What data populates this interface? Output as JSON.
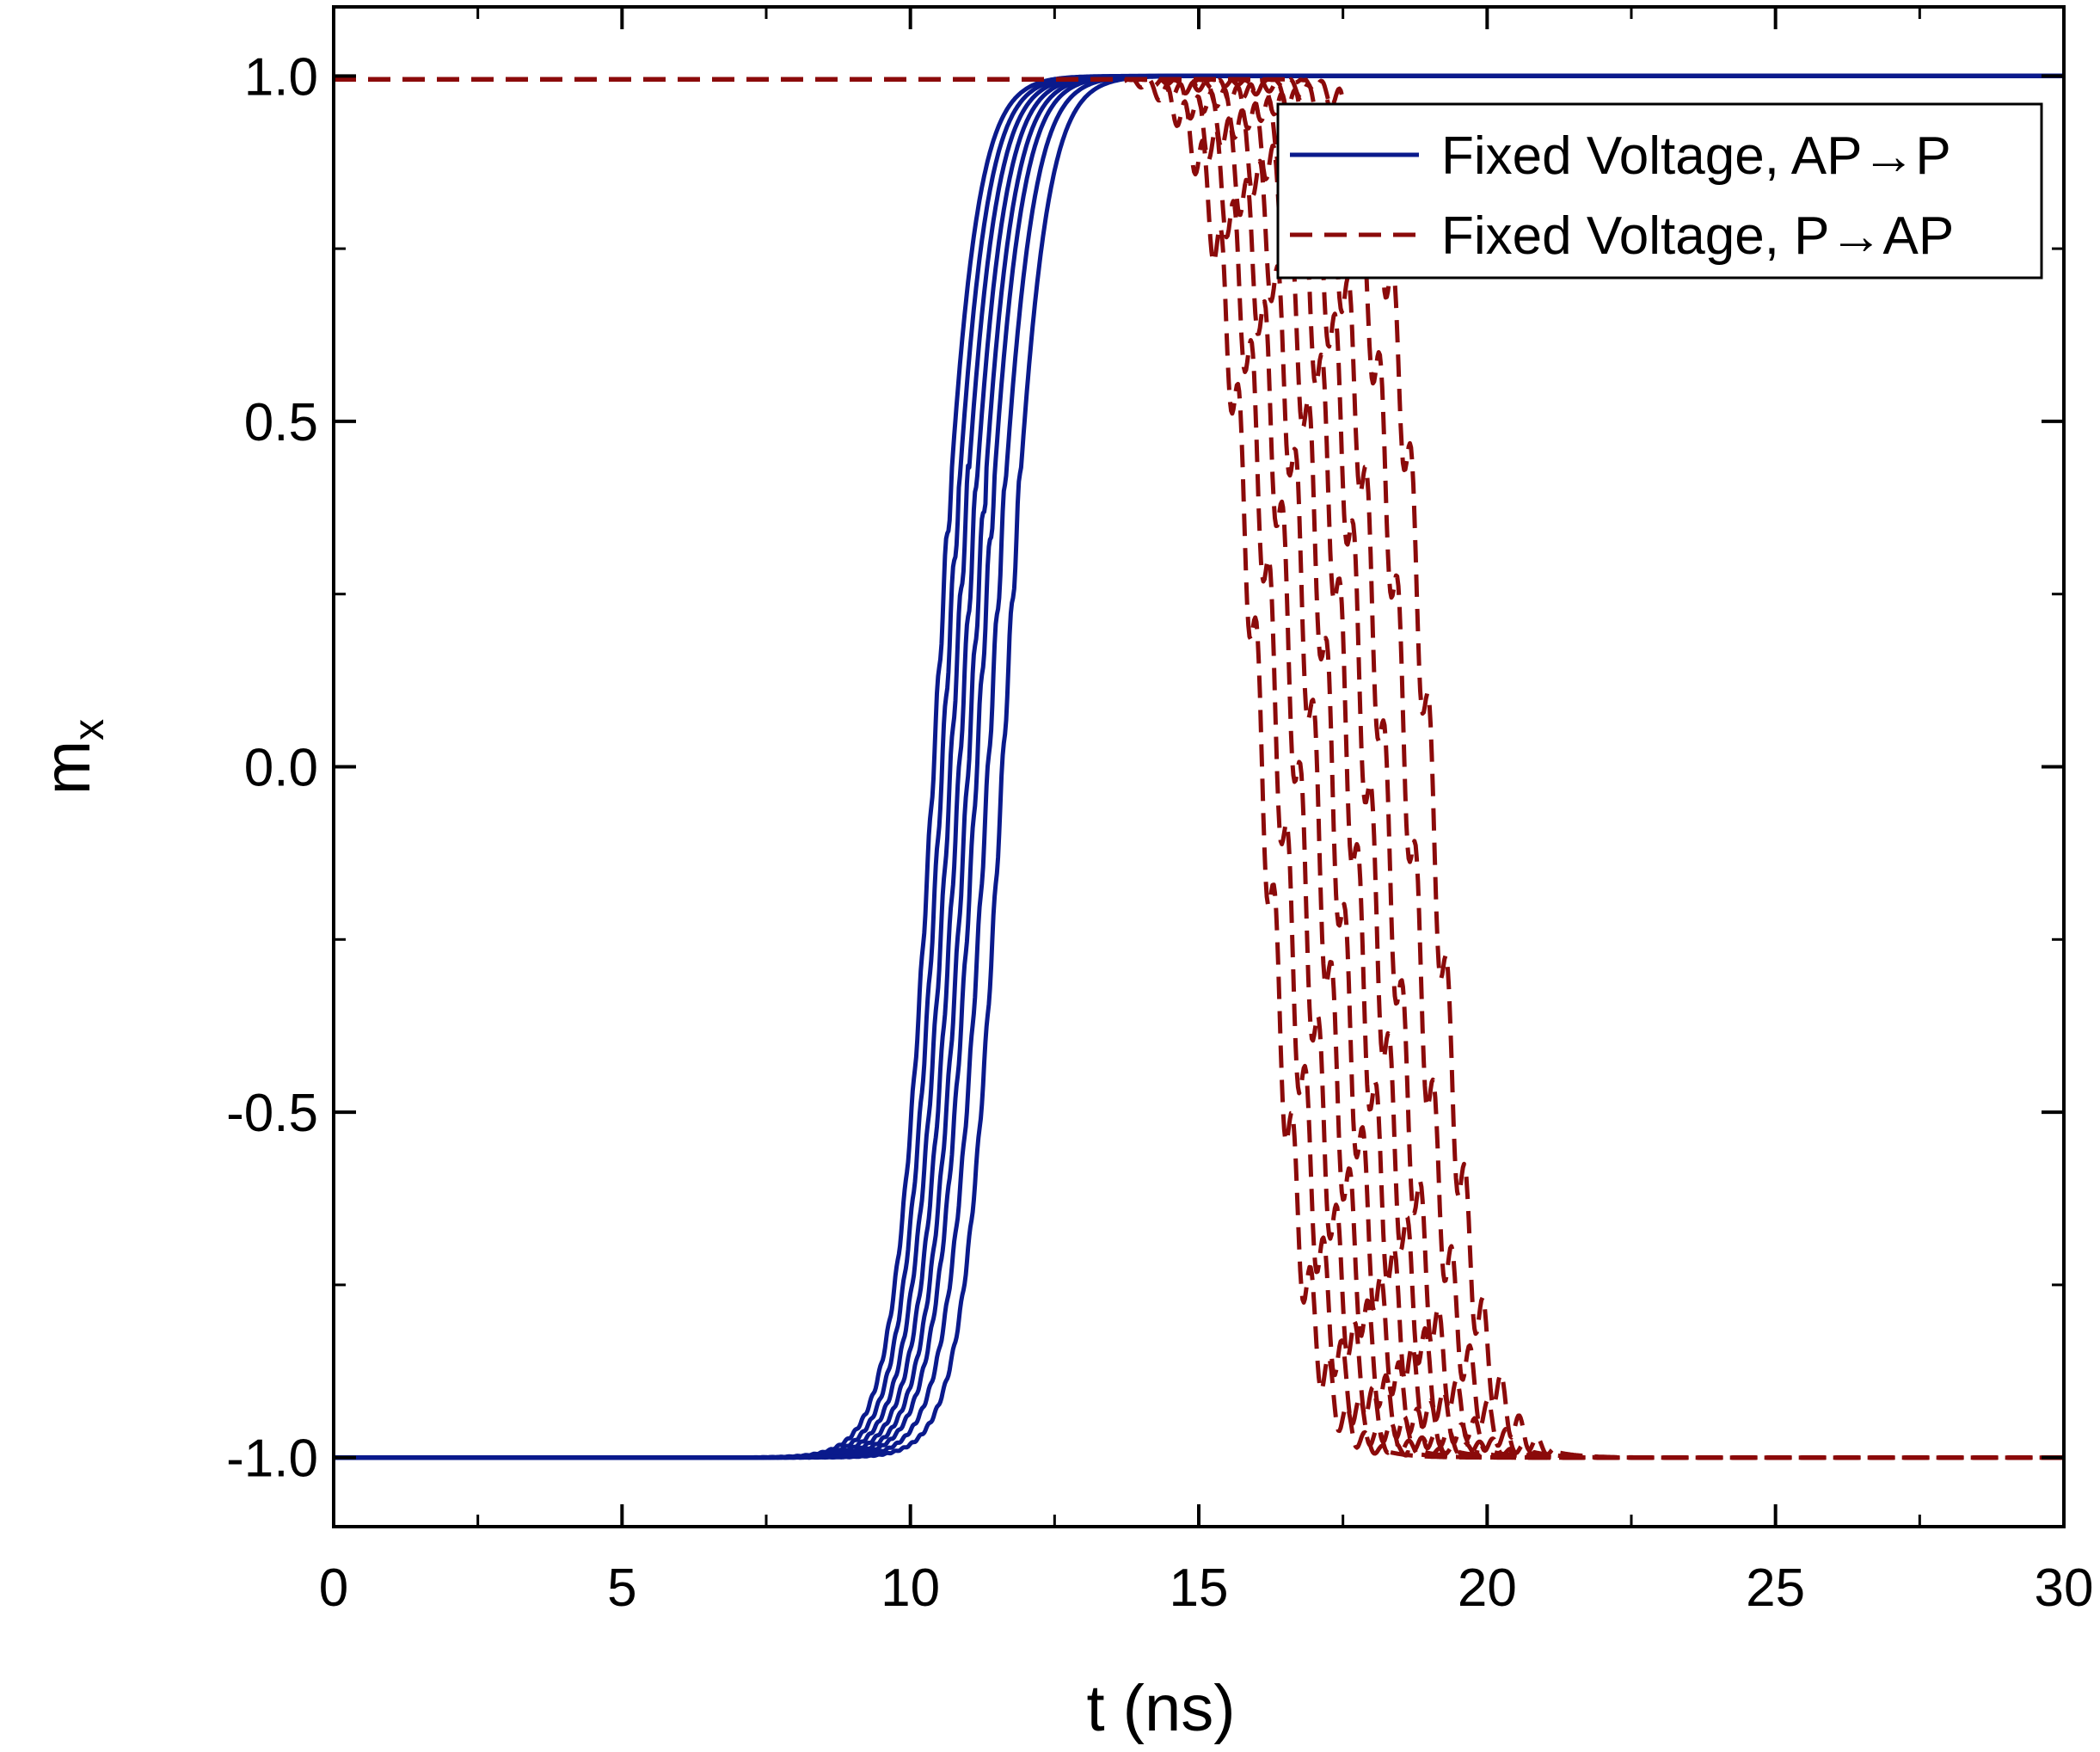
{
  "chart_data": {
    "type": "line",
    "title": "",
    "xlabel": "t (ns)",
    "ylabel_main": "m",
    "ylabel_sub": "x",
    "xlim": [
      0,
      30
    ],
    "ylim": [
      -1.1,
      1.1
    ],
    "x_ticks": [
      0,
      5,
      10,
      15,
      20,
      25,
      30
    ],
    "x_tick_labels": [
      "0",
      "5",
      "10",
      "15",
      "20",
      "25",
      "30"
    ],
    "y_ticks": [
      -1.0,
      -0.5,
      0.0,
      0.5,
      1.0
    ],
    "y_tick_labels": [
      "-1.0",
      "-0.5",
      "0.0",
      "0.5",
      "1.0"
    ],
    "x_minor_step": 2.5,
    "y_minor_step": 0.25,
    "grid": false,
    "legend_position": "top-right",
    "series": [
      {
        "name": "Fixed Voltage, AP→P",
        "color": "#0a1a8c",
        "style": "solid",
        "switch_times": [
          10.4,
          10.55,
          10.7,
          10.85,
          11.0,
          11.15,
          11.35,
          11.6
        ],
        "start_value": -1.0,
        "end_value": 1.0
      },
      {
        "name": "Fixed Voltage, P→AP",
        "color": "#8b0a0a",
        "style": "dashed",
        "switch_times": [
          16.1,
          16.4,
          16.7,
          17.0,
          17.3,
          17.6,
          17.9,
          18.2,
          18.6,
          19.0
        ],
        "start_value": 1.0,
        "end_value": -1.0
      }
    ]
  }
}
